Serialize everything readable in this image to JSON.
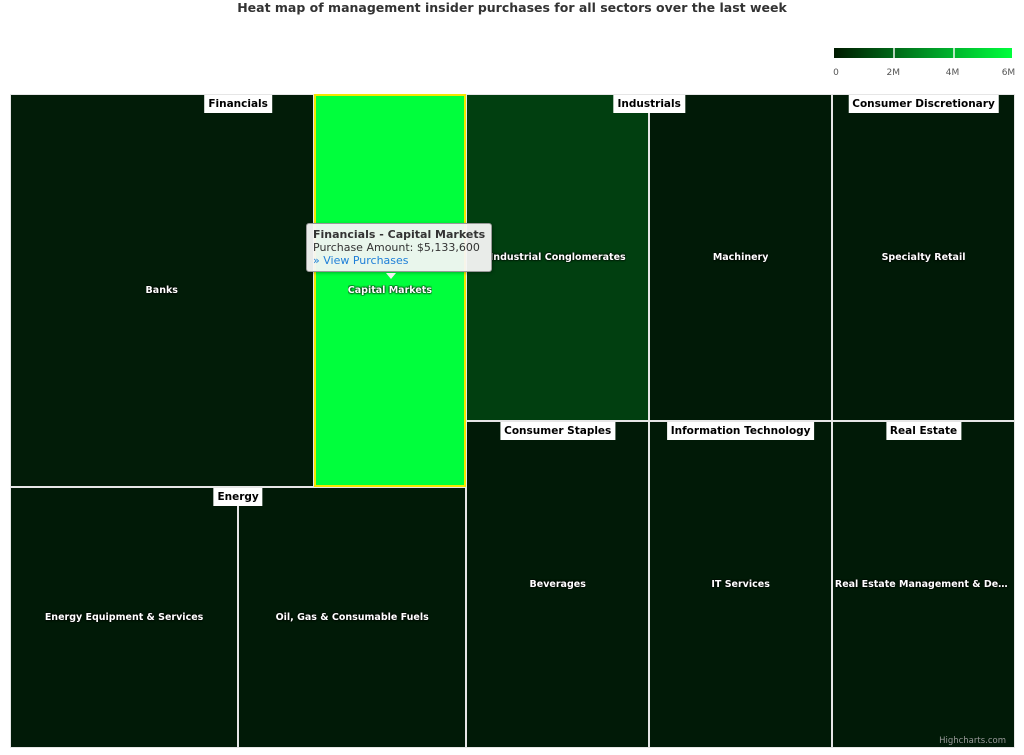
{
  "chart_data": {
    "type": "heatmap",
    "subtype": "treemap",
    "title": "Heat map of management insider purchases for all sectors over the last week",
    "color_axis": {
      "min": 0,
      "max": 6000000,
      "ticks": [
        "0",
        "2M",
        "4M",
        "6M"
      ],
      "min_color": "#001a00",
      "max_color": "#00ff3c",
      "placement": "top-right"
    },
    "groups": [
      {
        "name": "Financials",
        "children": [
          {
            "name": "Banks",
            "value": null,
            "color": "#021c08"
          },
          {
            "name": "Capital Markets",
            "value": 5133600,
            "color": "#00ff3c",
            "highlighted": true
          }
        ]
      },
      {
        "name": "Industrials",
        "children": [
          {
            "name": "Industrial Conglomerates",
            "value": null,
            "color": "#013f10"
          },
          {
            "name": "Machinery",
            "value": null,
            "color": "#011a07"
          }
        ]
      },
      {
        "name": "Consumer Discretionary",
        "children": [
          {
            "name": "Specialty Retail",
            "value": null,
            "color": "#011a07"
          }
        ]
      },
      {
        "name": "Energy",
        "children": [
          {
            "name": "Energy Equipment & Services",
            "value": null,
            "color": "#011a07"
          },
          {
            "name": "Oil, Gas & Consumable Fuels",
            "value": null,
            "color": "#011a07"
          }
        ]
      },
      {
        "name": "Consumer Staples",
        "children": [
          {
            "name": "Beverages",
            "value": null,
            "color": "#011a07"
          }
        ]
      },
      {
        "name": "Information Technology",
        "children": [
          {
            "name": "IT Services",
            "value": null,
            "color": "#011a07"
          }
        ]
      },
      {
        "name": "Real Estate",
        "children": [
          {
            "name": "Real Estate Management & Development",
            "value": null,
            "color": "#011a07"
          }
        ]
      }
    ]
  },
  "tooltip": {
    "title": "Financials - Capital Markets",
    "line": "Purchase Amount: $5,133,600",
    "link": "» View Purchases"
  },
  "credit": "Highcharts.com",
  "highlight_border_color": "#f5e600"
}
